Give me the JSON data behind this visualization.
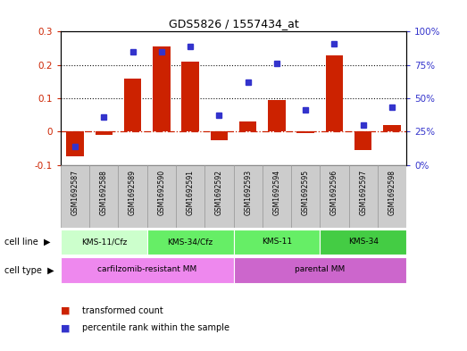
{
  "title": "GDS5826 / 1557434_at",
  "samples": [
    "GSM1692587",
    "GSM1692588",
    "GSM1692589",
    "GSM1692590",
    "GSM1692591",
    "GSM1692592",
    "GSM1692593",
    "GSM1692594",
    "GSM1692595",
    "GSM1692596",
    "GSM1692597",
    "GSM1692598"
  ],
  "transformed_count": [
    -0.075,
    -0.01,
    0.16,
    0.255,
    0.21,
    -0.025,
    0.03,
    0.095,
    -0.005,
    0.23,
    -0.055,
    0.02
  ],
  "percentile_rank_pct": [
    14,
    36,
    85,
    85,
    89,
    37,
    62,
    76,
    41,
    91,
    30,
    43
  ],
  "bar_color": "#cc2200",
  "dot_color": "#3333cc",
  "left_ylim": [
    -0.1,
    0.3
  ],
  "right_ylim": [
    0,
    100
  ],
  "left_yticks": [
    -0.1,
    0.0,
    0.1,
    0.2,
    0.3
  ],
  "left_yticklabels": [
    "-0.1",
    "0",
    "0.1",
    "0.2",
    "0.3"
  ],
  "right_yticks": [
    0,
    25,
    50,
    75,
    100
  ],
  "right_yticklabels": [
    "0%",
    "25%",
    "50%",
    "75%",
    "100%"
  ],
  "cell_line_groups": [
    {
      "label": "KMS-11/Cfz",
      "start": 0,
      "end": 3,
      "color": "#ccffcc"
    },
    {
      "label": "KMS-34/Cfz",
      "start": 3,
      "end": 6,
      "color": "#66ee66"
    },
    {
      "label": "KMS-11",
      "start": 6,
      "end": 9,
      "color": "#66ee66"
    },
    {
      "label": "KMS-34",
      "start": 9,
      "end": 12,
      "color": "#44cc44"
    }
  ],
  "cell_type_groups": [
    {
      "label": "carfilzomib-resistant MM",
      "start": 0,
      "end": 6,
      "color": "#ee88ee"
    },
    {
      "label": "parental MM",
      "start": 6,
      "end": 12,
      "color": "#cc66cc"
    }
  ],
  "legend_bar_label": "transformed count",
  "legend_dot_label": "percentile rank within the sample",
  "hline_color": "#cc2200",
  "dotted_line_color": "#111111",
  "sample_box_color": "#cccccc",
  "sample_box_edge": "#999999"
}
